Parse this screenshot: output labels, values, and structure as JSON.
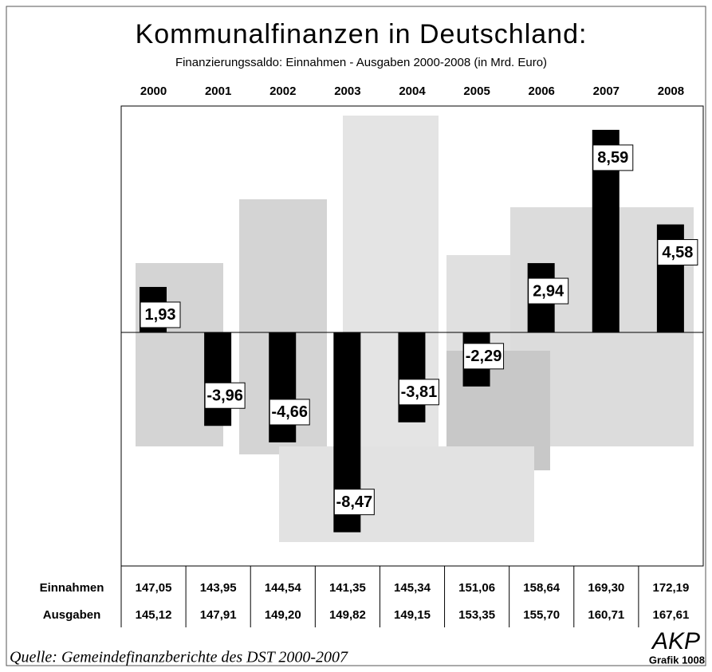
{
  "chart_data": {
    "type": "bar",
    "title": "Kommunalfinanzen in Deutschland:",
    "subtitle": "Finanzierungssaldo: Einnahmen - Ausgaben 2000-2008 (in Mrd. Euro)",
    "categories": [
      "2000",
      "2001",
      "2002",
      "2003",
      "2004",
      "2005",
      "2006",
      "2007",
      "2008"
    ],
    "values": [
      1.93,
      -3.96,
      -4.66,
      -8.47,
      -3.81,
      -2.29,
      2.94,
      8.59,
      4.58
    ],
    "value_labels": [
      "1,93",
      "-3,96",
      "-4,66",
      "-8,47",
      "-3,81",
      "-2,29",
      "2,94",
      "8,59",
      "4,58"
    ],
    "color": "#000000",
    "ylim": [
      -9.9,
      9.6
    ],
    "table": {
      "rows": [
        {
          "label": "Einnahmen",
          "cells": [
            "147,05",
            "143,95",
            "144,54",
            "141,35",
            "145,34",
            "151,06",
            "158,64",
            "169,30",
            "172,19"
          ]
        },
        {
          "label": "Ausgaben",
          "cells": [
            "145,12",
            "147,91",
            "149,20",
            "149,82",
            "149,15",
            "153,35",
            "155,70",
            "160,71",
            "167,61"
          ]
        }
      ]
    },
    "source": "Quelle: Gemeindefinanzberichte des DST 2000-2007",
    "logo": {
      "name": "AKP",
      "text": "Grafik 1008"
    }
  }
}
